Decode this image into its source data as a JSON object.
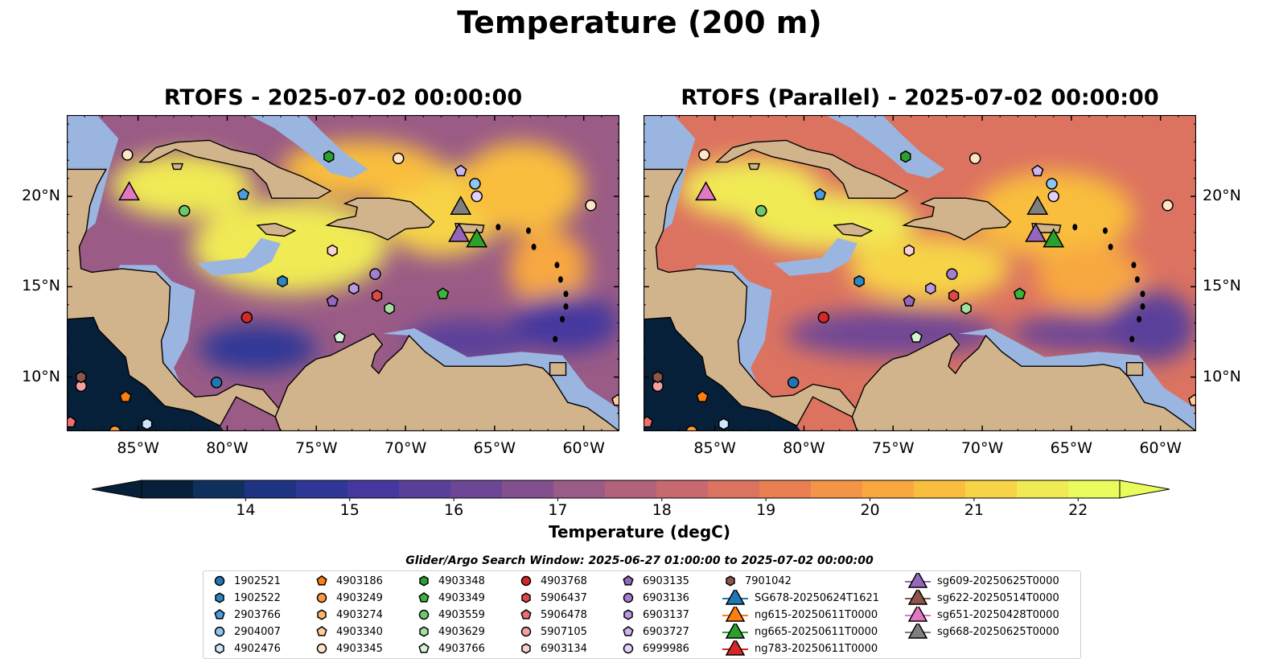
{
  "title": "Temperature (200 m)",
  "colors": {
    "land": "#d2b48c",
    "shelf": "#9ab5e0",
    "deep": "#07203a",
    "ramp": [
      "#07203a",
      "#0f2f5c",
      "#1e3381",
      "#2f3797",
      "#44389f",
      "#5a3f9a",
      "#6e4696",
      "#82508f",
      "#9a5b86",
      "#b2627b",
      "#c8696f",
      "#dc7361",
      "#ea8052",
      "#f49447",
      "#f8a83f",
      "#f9be3e",
      "#f7d446",
      "#f0ea54",
      "#e9fb5d"
    ]
  },
  "panels": [
    {
      "title": "RTOFS - 2025-07-02 00:00:00"
    },
    {
      "title": "RTOFS (Parallel) - 2025-07-02 00:00:00"
    }
  ],
  "map_extent": {
    "lon": [
      -89.0,
      -58.0
    ],
    "lat": [
      7.0,
      24.5
    ]
  },
  "lon_ticks": [
    {
      "value": -85,
      "label": "85°W"
    },
    {
      "value": -80,
      "label": "80°W"
    },
    {
      "value": -75,
      "label": "75°W"
    },
    {
      "value": -70,
      "label": "70°W"
    },
    {
      "value": -65,
      "label": "65°W"
    },
    {
      "value": -60,
      "label": "60°W"
    }
  ],
  "lat_ticks": [
    {
      "value": 10,
      "label": "10°N"
    },
    {
      "value": 15,
      "label": "15°N"
    },
    {
      "value": 20,
      "label": "20°N"
    }
  ],
  "colorbar": {
    "label": "Temperature (degC)",
    "min": 13.0,
    "max": 22.4,
    "ticks": [
      "14",
      "15",
      "16",
      "17",
      "18",
      "19",
      "20",
      "21",
      "22"
    ]
  },
  "search_window": "Glider/Argo Search Window: 2025-06-27 01:00:00 to 2025-07-02 00:00:00",
  "legend": [
    {
      "label": "1902521",
      "marker": "circle",
      "color": "#1f77b4"
    },
    {
      "label": "1902522",
      "marker": "hexagon",
      "color": "#2b86c6"
    },
    {
      "label": "2903766",
      "marker": "pentagon",
      "color": "#4a9be0"
    },
    {
      "label": "2904007",
      "marker": "circle",
      "color": "#8fc5f2"
    },
    {
      "label": "4902476",
      "marker": "hexagon",
      "color": "#cfe7fa"
    },
    {
      "label": "4903186",
      "marker": "pentagon",
      "color": "#ff7f0e"
    },
    {
      "label": "4903249",
      "marker": "circle",
      "color": "#ff9a3c"
    },
    {
      "label": "4903274",
      "marker": "hexagon",
      "color": "#ffb468"
    },
    {
      "label": "4903340",
      "marker": "pentagon",
      "color": "#ffce98"
    },
    {
      "label": "4903345",
      "marker": "circle",
      "color": "#ffe4c6"
    },
    {
      "label": "4903348",
      "marker": "hexagon",
      "color": "#2ca02c"
    },
    {
      "label": "4903349",
      "marker": "pentagon",
      "color": "#3cb43c"
    },
    {
      "label": "4903559",
      "marker": "circle",
      "color": "#6cc86c"
    },
    {
      "label": "4903629",
      "marker": "hexagon",
      "color": "#a2e0a2"
    },
    {
      "label": "4903766",
      "marker": "pentagon",
      "color": "#d4f4d4"
    },
    {
      "label": "4903768",
      "marker": "circle",
      "color": "#d62728"
    },
    {
      "label": "5906437",
      "marker": "hexagon",
      "color": "#e04848"
    },
    {
      "label": "5906478",
      "marker": "pentagon",
      "color": "#ec7070"
    },
    {
      "label": "5907105",
      "marker": "circle",
      "color": "#f4a0a0"
    },
    {
      "label": "6903134",
      "marker": "hexagon",
      "color": "#fbd0d0"
    },
    {
      "label": "6903135",
      "marker": "pentagon",
      "color": "#9467bd"
    },
    {
      "label": "6903136",
      "marker": "circle",
      "color": "#a57ed0"
    },
    {
      "label": "6903137",
      "marker": "hexagon",
      "color": "#b898e2"
    },
    {
      "label": "6903727",
      "marker": "pentagon",
      "color": "#ccb4f0"
    },
    {
      "label": "6999986",
      "marker": "circle",
      "color": "#e2d0fb"
    },
    {
      "label": "7901042",
      "marker": "hexagon",
      "color": "#8c564b"
    },
    {
      "label": "SG678-20250624T1621",
      "marker": "triangle",
      "color": "#1f77b4"
    },
    {
      "label": "ng615-20250611T0000",
      "marker": "triangle",
      "color": "#ff7f0e"
    },
    {
      "label": "ng665-20250611T0000",
      "marker": "triangle",
      "color": "#2ca02c"
    },
    {
      "label": "ng783-20250611T0000",
      "marker": "triangle",
      "color": "#d62728"
    },
    {
      "label": "sg609-20250625T0000",
      "marker": "triangle",
      "color": "#9467bd"
    },
    {
      "label": "sg622-20250514T0000",
      "marker": "triangle",
      "color": "#8c564b"
    },
    {
      "label": "sg651-20250428T0000",
      "marker": "triangle",
      "color": "#e377c2"
    },
    {
      "label": "sg668-20250625T0000",
      "marker": "triangle",
      "color": "#7f7f7f"
    }
  ],
  "observations": [
    {
      "id": "1902521",
      "lon": -80.6,
      "lat": 9.7
    },
    {
      "id": "1902522",
      "lon": -76.9,
      "lat": 15.3
    },
    {
      "id": "2903766",
      "lon": -79.1,
      "lat": 20.1
    },
    {
      "id": "2904007",
      "lon": -66.1,
      "lat": 20.7
    },
    {
      "id": "4902476",
      "lon": -84.5,
      "lat": 7.4
    },
    {
      "id": "4903186",
      "lon": -85.7,
      "lat": 8.9
    },
    {
      "id": "4903249",
      "lon": -86.3,
      "lat": 7.0
    },
    {
      "id": "4903274",
      "lon": -84.2,
      "lat": 6.4
    },
    {
      "id": "4903340",
      "lon": -58.1,
      "lat": 8.7
    },
    {
      "id": "4903345",
      "lon": -59.6,
      "lat": 19.5
    },
    {
      "id": "4903348",
      "lon": -74.3,
      "lat": 22.2
    },
    {
      "id": "4903349",
      "lon": -67.9,
      "lat": 14.6
    },
    {
      "id": "4903559",
      "lon": -82.4,
      "lat": 19.2
    },
    {
      "id": "4903629",
      "lon": -70.9,
      "lat": 13.8
    },
    {
      "id": "4903766",
      "lon": -73.7,
      "lat": 12.2
    },
    {
      "id": "4903768",
      "lon": -78.9,
      "lat": 13.3
    },
    {
      "id": "5906437",
      "lon": -71.6,
      "lat": 14.5
    },
    {
      "id": "5906478",
      "lon": -88.8,
      "lat": 7.5
    },
    {
      "id": "5907105",
      "lon": -88.2,
      "lat": 9.5
    },
    {
      "id": "6903134",
      "lon": -74.1,
      "lat": 17.0
    },
    {
      "id": "6903135",
      "lon": -74.1,
      "lat": 14.2
    },
    {
      "id": "6903136",
      "lon": -71.7,
      "lat": 15.7
    },
    {
      "id": "6903137",
      "lon": -72.9,
      "lat": 14.9
    },
    {
      "id": "6903727",
      "lon": -66.9,
      "lat": 21.4
    },
    {
      "id": "6999986",
      "lon": -66.0,
      "lat": 20.0
    },
    {
      "id": "7901042",
      "lon": -88.2,
      "lat": 10.0
    },
    {
      "id": "sg609-20250625T0000",
      "lon": -67.0,
      "lat": 17.9
    },
    {
      "id": "sg651-20250428T0000",
      "lon": -85.5,
      "lat": 20.2
    },
    {
      "id": "sg668-20250625T0000",
      "lon": -66.9,
      "lat": 19.4
    },
    {
      "id": "ng665-20250611T0000",
      "lon": -66.0,
      "lat": 17.6
    },
    {
      "id": "4903345",
      "lon": -70.4,
      "lat": 22.1
    },
    {
      "id": "4903345",
      "lon": -85.6,
      "lat": 22.3
    }
  ],
  "land": [
    {
      "name": "Central America",
      "points": [
        [
          -89,
          7
        ],
        [
          -89,
          13.2
        ],
        [
          -87.5,
          13.3
        ],
        [
          -87.2,
          12.6
        ],
        [
          -85.7,
          11.1
        ],
        [
          -85.5,
          10.1
        ],
        [
          -84.6,
          9.5
        ],
        [
          -83.5,
          8.4
        ],
        [
          -82.0,
          8.1
        ],
        [
          -80.4,
          7.3
        ],
        [
          -79.5,
          8.9
        ],
        [
          -78.3,
          8.3
        ],
        [
          -77.3,
          7.8
        ],
        [
          -77.0,
          7.0
        ],
        [
          -76.0,
          7.0
        ],
        [
          -77.4,
          8.6
        ],
        [
          -78.0,
          9.3
        ],
        [
          -79.5,
          9.6
        ],
        [
          -80.6,
          9.0
        ],
        [
          -81.8,
          8.9
        ],
        [
          -82.6,
          9.6
        ],
        [
          -83.6,
          10.8
        ],
        [
          -83.7,
          12.0
        ],
        [
          -83.3,
          13.1
        ],
        [
          -83.2,
          15.0
        ],
        [
          -84.0,
          15.8
        ],
        [
          -85.9,
          16.0
        ],
        [
          -87.6,
          15.8
        ],
        [
          -88.2,
          16.0
        ],
        [
          -88.3,
          17.2
        ],
        [
          -87.9,
          18.1
        ],
        [
          -87.7,
          19.5
        ],
        [
          -87.3,
          20.6
        ],
        [
          -86.8,
          21.5
        ],
        [
          -89,
          21.5
        ]
      ]
    },
    {
      "name": "South America",
      "points": [
        [
          -77.3,
          7.8
        ],
        [
          -76.6,
          9.5
        ],
        [
          -75.6,
          10.6
        ],
        [
          -75.0,
          11.0
        ],
        [
          -74.2,
          11.2
        ],
        [
          -72.8,
          11.9
        ],
        [
          -71.8,
          12.4
        ],
        [
          -71.3,
          11.8
        ],
        [
          -71.7,
          11.3
        ],
        [
          -71.9,
          10.6
        ],
        [
          -71.5,
          10.2
        ],
        [
          -71.1,
          10.8
        ],
        [
          -70.2,
          11.6
        ],
        [
          -69.8,
          12.3
        ],
        [
          -68.9,
          11.4
        ],
        [
          -67.8,
          10.6
        ],
        [
          -66.2,
          10.6
        ],
        [
          -64.3,
          10.6
        ],
        [
          -63.2,
          10.7
        ],
        [
          -62.3,
          10.5
        ],
        [
          -61.8,
          10.0
        ],
        [
          -60.9,
          8.6
        ],
        [
          -59.8,
          8.3
        ],
        [
          -58.8,
          7.6
        ],
        [
          -58,
          7.0
        ],
        [
          -77,
          7
        ]
      ]
    },
    {
      "name": "Cuba",
      "points": [
        [
          -84.9,
          21.9
        ],
        [
          -84.0,
          22.7
        ],
        [
          -82.8,
          23.0
        ],
        [
          -81.0,
          23.1
        ],
        [
          -79.8,
          22.6
        ],
        [
          -78.4,
          22.3
        ],
        [
          -77.1,
          21.6
        ],
        [
          -75.8,
          21.1
        ],
        [
          -74.2,
          20.3
        ],
        [
          -74.9,
          19.9
        ],
        [
          -77.5,
          19.9
        ],
        [
          -77.8,
          20.7
        ],
        [
          -78.6,
          21.5
        ],
        [
          -80.4,
          21.9
        ],
        [
          -81.8,
          22.2
        ],
        [
          -82.9,
          22.6
        ],
        [
          -84.3,
          21.9
        ]
      ]
    },
    {
      "name": "Hispaniola",
      "points": [
        [
          -74.4,
          18.4
        ],
        [
          -72.9,
          18.2
        ],
        [
          -71.9,
          18.0
        ],
        [
          -71.0,
          17.6
        ],
        [
          -70.0,
          18.2
        ],
        [
          -68.7,
          18.3
        ],
        [
          -68.4,
          18.6
        ],
        [
          -69.2,
          19.3
        ],
        [
          -69.7,
          19.7
        ],
        [
          -70.9,
          19.9
        ],
        [
          -72.7,
          19.9
        ],
        [
          -73.4,
          19.6
        ],
        [
          -72.7,
          19.4
        ],
        [
          -72.8,
          18.9
        ],
        [
          -73.8,
          18.7
        ]
      ]
    },
    {
      "name": "Jamaica",
      "points": [
        [
          -78.3,
          18.4
        ],
        [
          -77.3,
          18.5
        ],
        [
          -76.2,
          18.1
        ],
        [
          -76.8,
          17.8
        ],
        [
          -77.8,
          17.9
        ]
      ]
    },
    {
      "name": "Puerto Rico",
      "points": [
        [
          -67.2,
          18.5
        ],
        [
          -65.6,
          18.4
        ],
        [
          -65.7,
          18.0
        ],
        [
          -67.1,
          18.0
        ]
      ]
    },
    {
      "name": "Isla de la Juventud",
      "points": [
        [
          -83.1,
          21.8
        ],
        [
          -82.5,
          21.8
        ],
        [
          -82.6,
          21.5
        ],
        [
          -83.0,
          21.5
        ]
      ]
    },
    {
      "name": "Trinidad",
      "points": [
        [
          -61.9,
          10.8
        ],
        [
          -61.0,
          10.8
        ],
        [
          -61.0,
          10.1
        ],
        [
          -61.9,
          10.1
        ]
      ]
    }
  ],
  "shelf": [
    {
      "name": "Gulf of Honduras shelf",
      "points": [
        [
          -89,
          13.2
        ],
        [
          -87.5,
          13.6
        ],
        [
          -86.0,
          16.2
        ],
        [
          -84.0,
          16.2
        ],
        [
          -83.1,
          15.3
        ],
        [
          -81.8,
          14.8
        ],
        [
          -82.2,
          12.0
        ],
        [
          -83.0,
          10.5
        ],
        [
          -82.6,
          9.6
        ],
        [
          -83.6,
          10.8
        ],
        [
          -83.7,
          12.0
        ],
        [
          -83.3,
          13.1
        ],
        [
          -83.2,
          15.0
        ],
        [
          -84.0,
          15.8
        ],
        [
          -85.9,
          16.0
        ],
        [
          -87.6,
          15.8
        ],
        [
          -88.2,
          16.0
        ],
        [
          -88.3,
          17.2
        ],
        [
          -87.9,
          18.1
        ],
        [
          -87.4,
          18.5
        ],
        [
          -86.6,
          21.6
        ],
        [
          -89,
          21.6
        ]
      ]
    },
    {
      "name": "Nicaragua Rise",
      "points": [
        [
          -81.7,
          16.3
        ],
        [
          -79.0,
          16.6
        ],
        [
          -78.1,
          17.7
        ],
        [
          -77.0,
          17.4
        ],
        [
          -77.5,
          16.4
        ],
        [
          -78.6,
          15.8
        ],
        [
          -80.8,
          15.6
        ]
      ]
    },
    {
      "name": "Venezuela shelf",
      "points": [
        [
          -71.3,
          12.4
        ],
        [
          -69.5,
          12.7
        ],
        [
          -66.5,
          11.1
        ],
        [
          -63.5,
          11.4
        ],
        [
          -61.2,
          11.2
        ],
        [
          -59.8,
          9.4
        ],
        [
          -58.1,
          8.3
        ],
        [
          -58.0,
          7.0
        ],
        [
          -62,
          7
        ],
        [
          -64.3,
          10.6
        ],
        [
          -66.2,
          10.6
        ],
        [
          -67.8,
          10.6
        ],
        [
          -68.9,
          11.4
        ],
        [
          -69.8,
          12.3
        ]
      ]
    },
    {
      "name": "Bahamas banks",
      "points": [
        [
          -78.8,
          24.5
        ],
        [
          -77.4,
          23.8
        ],
        [
          -76.0,
          22.8
        ],
        [
          -75.0,
          22.0
        ],
        [
          -74.2,
          21.3
        ],
        [
          -73.0,
          21.0
        ],
        [
          -72.1,
          21.5
        ],
        [
          -73.4,
          22.4
        ],
        [
          -74.6,
          23.5
        ],
        [
          -75.6,
          24.5
        ]
      ]
    },
    {
      "name": "Gulf of Mexico deep",
      "points": [
        [
          -89,
          21.6
        ],
        [
          -86.6,
          21.6
        ],
        [
          -86.1,
          23.2
        ],
        [
          -87.3,
          24.5
        ],
        [
          -89,
          24.5
        ]
      ]
    }
  ],
  "pacific_deep": [
    {
      "name": "Pacific",
      "points": [
        [
          -89,
          6.4
        ],
        [
          -89,
          13.2
        ],
        [
          -87.5,
          13.3
        ],
        [
          -87.2,
          12.6
        ],
        [
          -85.7,
          11.1
        ],
        [
          -85.5,
          10.1
        ],
        [
          -84.6,
          9.5
        ],
        [
          -83.5,
          8.4
        ],
        [
          -82.0,
          8.1
        ],
        [
          -80.4,
          7.3
        ],
        [
          -79.7,
          6.4
        ]
      ]
    }
  ],
  "warm_blobs": [
    {
      "panel": 0,
      "lon": -76.5,
      "lat": 17.2,
      "rx": 5.5,
      "ry": 2.6,
      "t": 21.7
    },
    {
      "panel": 0,
      "lon": -82.5,
      "lat": 20.6,
      "rx": 4.0,
      "ry": 1.8,
      "t": 21.6
    },
    {
      "panel": 0,
      "lon": -68.0,
      "lat": 19.2,
      "rx": 3.5,
      "ry": 2.5,
      "t": 21.4
    },
    {
      "panel": 0,
      "lon": -72.5,
      "lat": 21.5,
      "rx": 4.5,
      "ry": 1.6,
      "t": 20.9
    },
    {
      "panel": 0,
      "lon": -63.5,
      "lat": 20.5,
      "rx": 3.5,
      "ry": 2.5,
      "t": 20.6
    },
    {
      "panel": 0,
      "lon": -62.0,
      "lat": 16.0,
      "rx": 2.2,
      "ry": 2.2,
      "t": 20.0
    },
    {
      "panel": 0,
      "lon": -78.3,
      "lat": 11.6,
      "rx": 3.3,
      "ry": 1.3,
      "t": 14.5
    },
    {
      "panel": 0,
      "lon": -66.5,
      "lat": 12.0,
      "rx": 3.5,
      "ry": 1.2,
      "t": 15.6
    },
    {
      "panel": 0,
      "lon": -61.0,
      "lat": 13.0,
      "rx": 3.0,
      "ry": 1.6,
      "t": 15.4
    },
    {
      "panel": 1,
      "lon": -78.5,
      "lat": 18.6,
      "rx": 4.8,
      "ry": 1.6,
      "t": 21.8
    },
    {
      "panel": 1,
      "lon": -83.0,
      "lat": 20.4,
      "rx": 4.0,
      "ry": 1.7,
      "t": 21.6
    },
    {
      "panel": 1,
      "lon": -73.0,
      "lat": 16.0,
      "rx": 4.5,
      "ry": 1.8,
      "t": 21.0
    },
    {
      "panel": 1,
      "lon": -66.0,
      "lat": 19.0,
      "rx": 4.5,
      "ry": 2.4,
      "t": 20.6
    },
    {
      "panel": 1,
      "lon": -64.0,
      "lat": 15.5,
      "rx": 3.0,
      "ry": 1.8,
      "t": 20.0
    },
    {
      "panel": 1,
      "lon": -75.0,
      "lat": 12.4,
      "rx": 6.0,
      "ry": 1.3,
      "t": 16.2
    },
    {
      "panel": 1,
      "lon": -64.5,
      "lat": 12.4,
      "rx": 4.0,
      "ry": 1.1,
      "t": 16.0
    },
    {
      "panel": 1,
      "lon": -60.5,
      "lat": 12.8,
      "rx": 2.5,
      "ry": 2.0,
      "t": 15.5
    }
  ]
}
